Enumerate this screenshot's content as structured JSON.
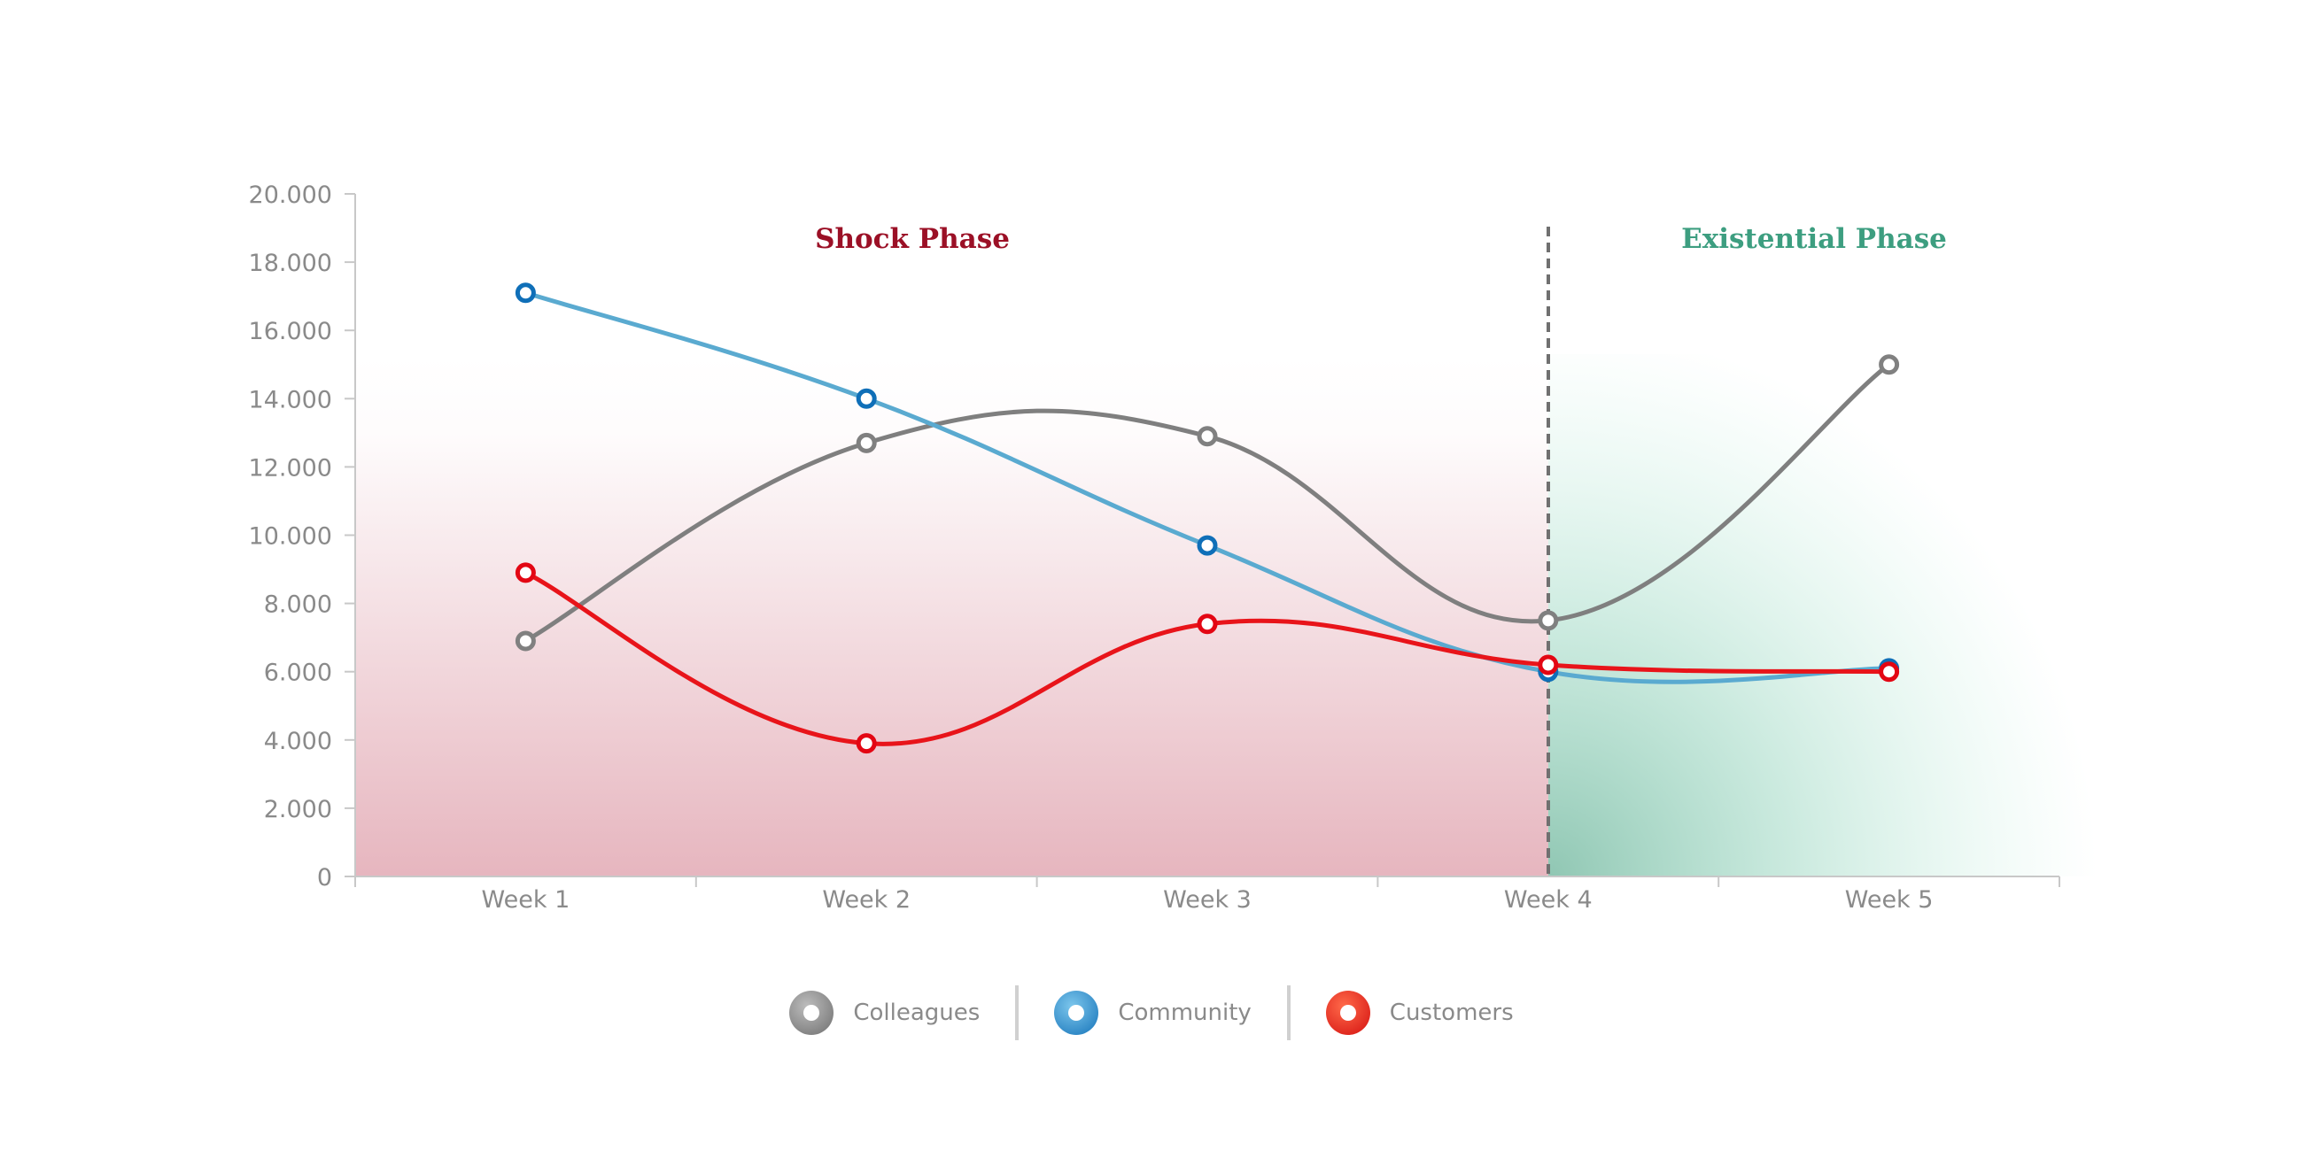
{
  "chart_data": {
    "type": "line",
    "categories": [
      "Week 1",
      "Week 2",
      "Week 3",
      "Week 4",
      "Week 5"
    ],
    "yticks": [
      "0",
      "2.000",
      "4.000",
      "6.000",
      "8.000",
      "10.000",
      "12.000",
      "14.000",
      "16.000",
      "18.000",
      "20.000"
    ],
    "ylim": [
      0,
      20000
    ],
    "series": [
      {
        "name": "Colleagues",
        "values": [
          6900,
          12700,
          12900,
          7500,
          15000
        ],
        "color": "#7f7f7f",
        "marker_color": "#808080"
      },
      {
        "name": "Community",
        "values": [
          17100,
          14000,
          9700,
          6000,
          6100
        ],
        "color": "#5aaad0",
        "marker_color": "#0f6fb8"
      },
      {
        "name": "Customers",
        "values": [
          8900,
          3900,
          7400,
          6200,
          6000
        ],
        "color": "#e8141a",
        "marker_color": "#e30613"
      }
    ],
    "phases": [
      {
        "label": "Shock Phase",
        "color": "#9b1026",
        "from": "Week 1",
        "to": "Week 4"
      },
      {
        "label": "Existential Phase",
        "color": "#3d9e80",
        "from": "Week 4",
        "to": "Week 5"
      }
    ],
    "divider_at": "Week 4",
    "legend_position": "bottom-center"
  }
}
